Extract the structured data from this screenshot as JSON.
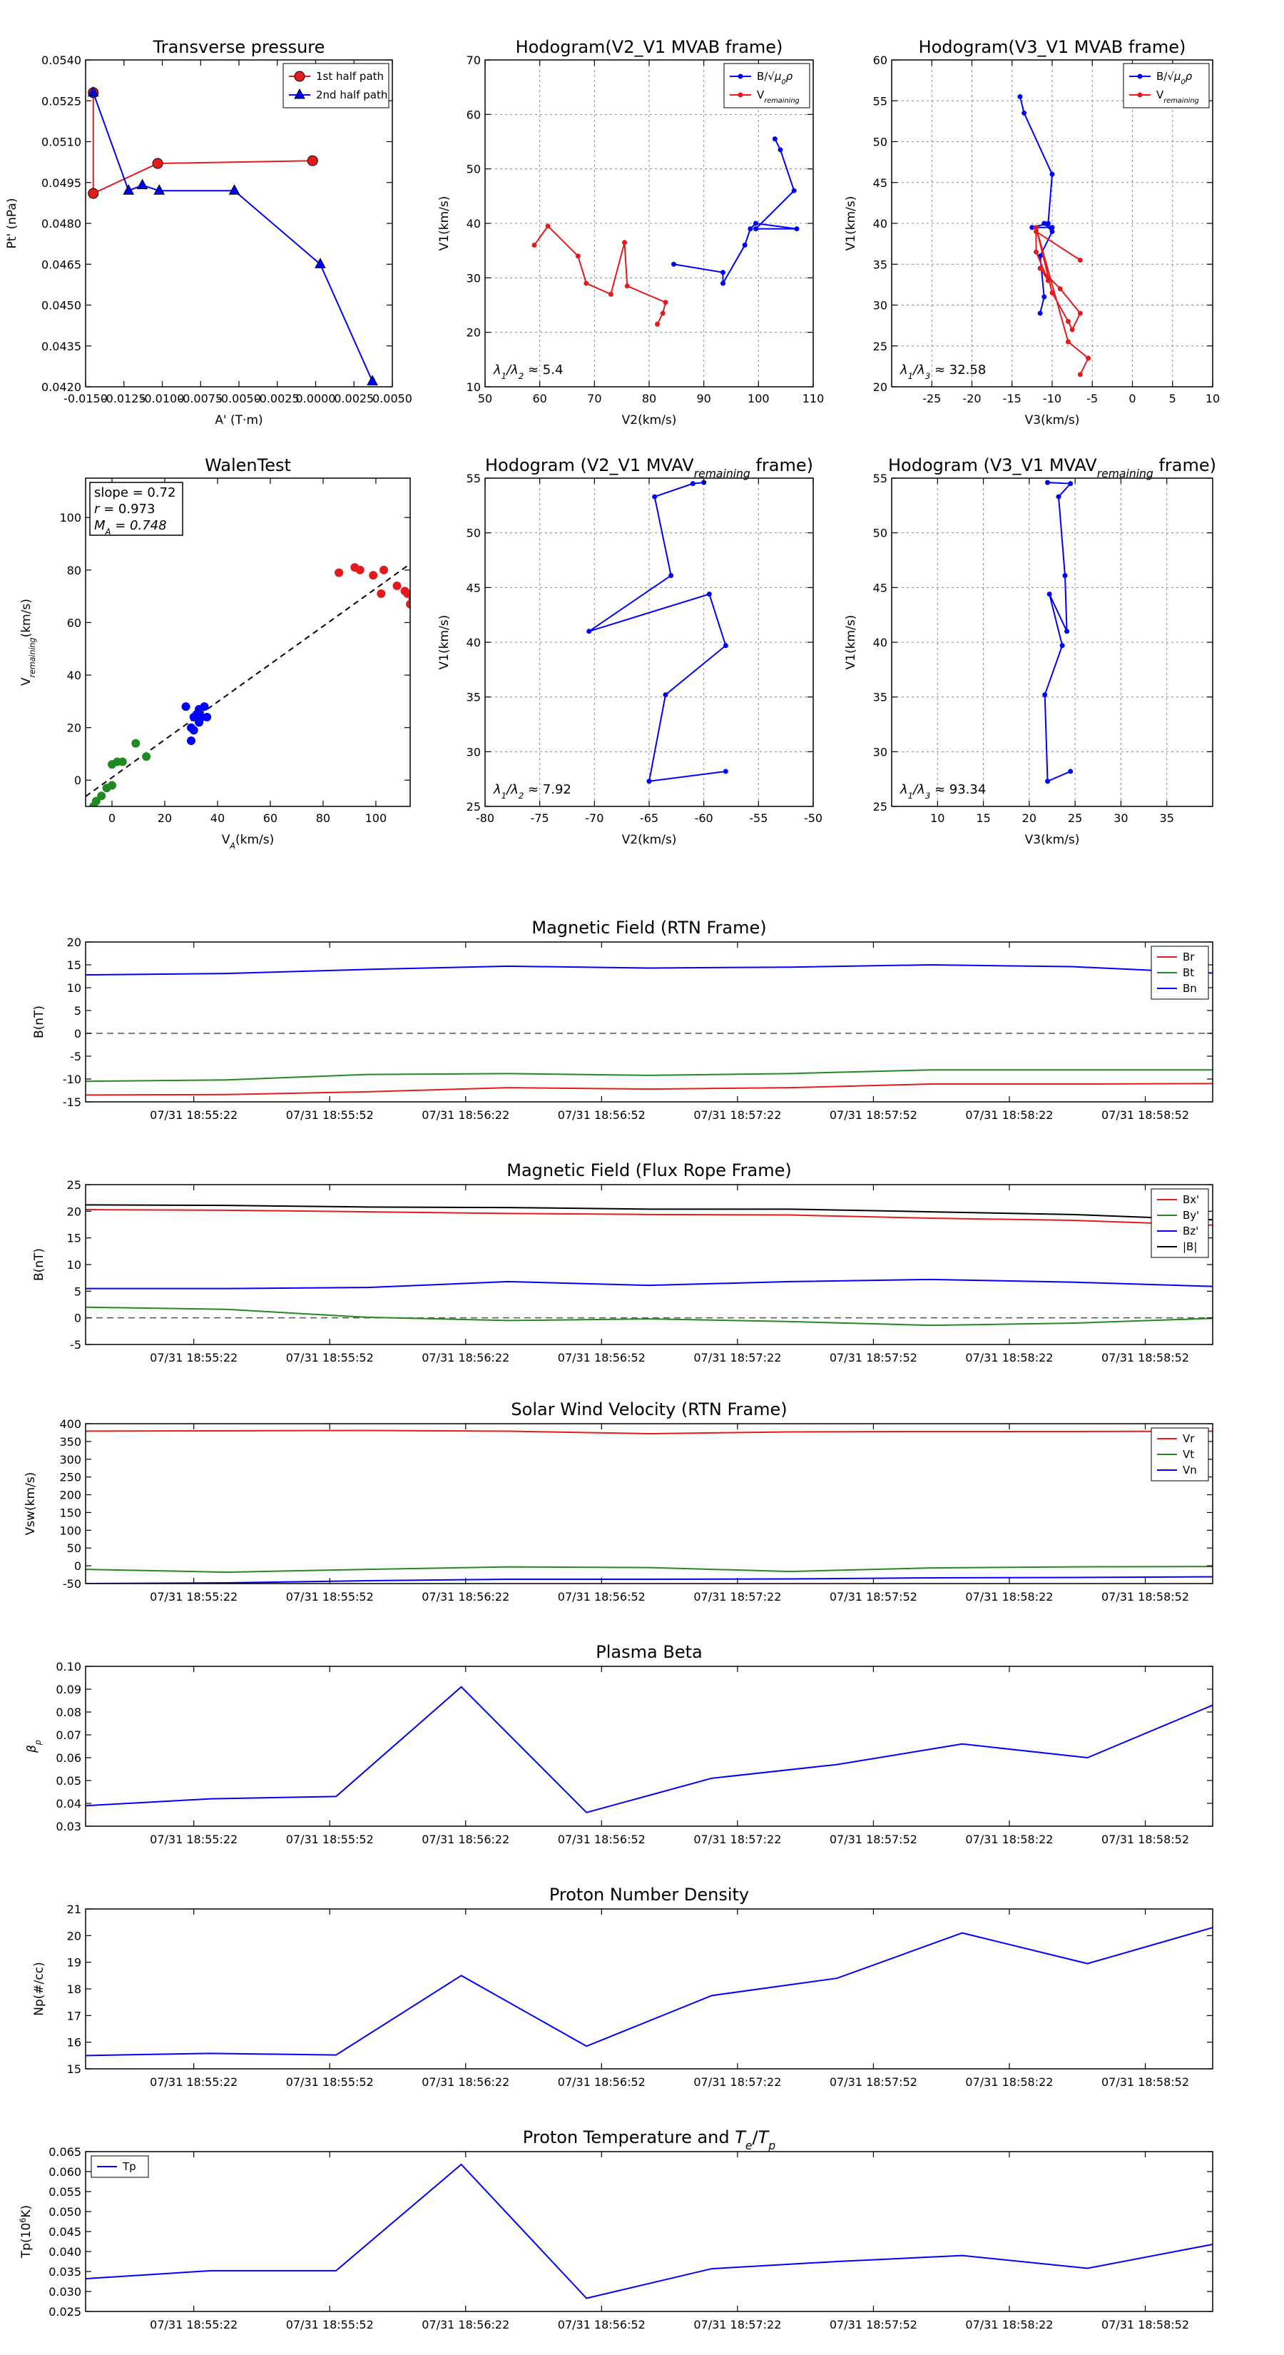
{
  "colors": {
    "red": "#e41a1c",
    "green": "#1f8a1f",
    "blue": "#0000ff",
    "black": "#000000",
    "dash": "#555555",
    "grid": "#888888"
  },
  "chart_data": [
    {
      "id": "transverse-pressure",
      "type": "line",
      "title": "Transverse pressure",
      "xlabel": "A' (T·m)",
      "ylabel": "Pt' (nPa)",
      "xlim": [
        -0.015,
        0.005
      ],
      "ylim": [
        0.042,
        0.054
      ],
      "xticks": [
        "-0.0150",
        "-0.0125",
        "-0.0100",
        "-0.0075",
        "-0.0050",
        "-0.0025",
        "0.0000",
        "0.0025",
        "0.0050"
      ],
      "xtick_values": [
        -0.015,
        -0.0125,
        -0.01,
        -0.0075,
        -0.005,
        -0.0025,
        0,
        0.0025,
        0.005
      ],
      "yticks": [
        "0.0420",
        "0.0435",
        "0.0450",
        "0.0465",
        "0.0480",
        "0.0495",
        "0.0510",
        "0.0525",
        "0.0540"
      ],
      "ytick_values": [
        0.042,
        0.0435,
        0.045,
        0.0465,
        0.048,
        0.0495,
        0.051,
        0.0525,
        0.054
      ],
      "grid": false,
      "legend": "top-right",
      "series": [
        {
          "name": "1st half path",
          "color": "red",
          "marker": "circle",
          "x": [
            -0.0145,
            -0.0145,
            -0.0103,
            -0.0002
          ],
          "y": [
            0.0528,
            0.0491,
            0.0502,
            0.0503
          ]
        },
        {
          "name": "2nd half path",
          "color": "blue",
          "marker": "triangle",
          "x": [
            -0.0145,
            -0.0122,
            -0.0113,
            -0.0102,
            -0.0053,
            0.0003,
            0.0037
          ],
          "y": [
            0.0528,
            0.0492,
            0.0494,
            0.0492,
            0.0492,
            0.0465,
            0.0422
          ]
        }
      ]
    },
    {
      "id": "hodogram-v2-v1-mvab",
      "type": "line",
      "title": "Hodogram(V2_V1 MVAB frame)",
      "xlabel": "V2(km/s)",
      "ylabel": "V1(km/s)",
      "xlim": [
        50,
        110
      ],
      "ylim": [
        10,
        70
      ],
      "xticks": [
        "50",
        "60",
        "70",
        "80",
        "90",
        "100",
        "110"
      ],
      "xtick_values": [
        50,
        60,
        70,
        80,
        90,
        100,
        110
      ],
      "yticks": [
        "10",
        "20",
        "30",
        "40",
        "50",
        "60",
        "70"
      ],
      "ytick_values": [
        10,
        20,
        30,
        40,
        50,
        60,
        70
      ],
      "grid": true,
      "legend": "top-right",
      "annotation": "λ1/λ2 ≈ 5.4",
      "series": [
        {
          "name": "B/√(μ0ρ)",
          "color": "blue",
          "marker": "dot",
          "x": [
            84.5,
            93.5,
            93.5,
            97.5,
            98.5,
            99.5,
            107.0,
            99.5,
            106.5,
            104.0,
            103.0
          ],
          "y": [
            32.5,
            31.0,
            29.0,
            36.0,
            39.0,
            40.0,
            39.0,
            39.0,
            46.0,
            53.5,
            55.5
          ]
        },
        {
          "name": "V_remaining",
          "color": "red",
          "marker": "dot",
          "x": [
            59.0,
            61.5,
            67.0,
            68.5,
            73.0,
            75.5,
            76.0,
            83.0,
            82.5,
            81.5
          ],
          "y": [
            36.0,
            39.5,
            34.0,
            29.0,
            27.0,
            36.5,
            28.5,
            25.5,
            23.5,
            21.5
          ]
        }
      ]
    },
    {
      "id": "hodogram-v3-v1-mvab",
      "type": "line",
      "title": "Hodogram(V3_V1 MVAB frame)",
      "xlabel": "V3(km/s)",
      "ylabel": "V1(km/s)",
      "xlim": [
        -30,
        10
      ],
      "ylim": [
        20,
        60
      ],
      "xticks": [
        "-25",
        "-20",
        "-15",
        "-10",
        "-5",
        "0",
        "5",
        "10"
      ],
      "xtick_values": [
        -25,
        -20,
        -15,
        -10,
        -5,
        0,
        5,
        10
      ],
      "yticks": [
        "20",
        "25",
        "30",
        "35",
        "40",
        "45",
        "50",
        "55",
        "60"
      ],
      "ytick_values": [
        20,
        25,
        30,
        35,
        40,
        45,
        50,
        55,
        60
      ],
      "grid": true,
      "legend": "top-right",
      "annotation": "λ1/λ3 ≈ 32.58",
      "series": [
        {
          "name": "B/√(μ0ρ)",
          "color": "blue",
          "marker": "dot",
          "x": [
            -11.5,
            -11.0,
            -11.5,
            -10.0,
            -11.0,
            -10.0,
            -12.5,
            -10.5,
            -10.0,
            -13.5,
            -14.0
          ],
          "y": [
            29.0,
            31.0,
            36.0,
            39.0,
            40.0,
            39.5,
            39.5,
            40.0,
            46.0,
            53.5,
            55.5
          ]
        },
        {
          "name": "V_remaining",
          "color": "red",
          "marker": "dot",
          "x": [
            -6.5,
            -12.0,
            -12.0,
            -10.5,
            -11.5,
            -9.0,
            -6.5,
            -7.5,
            -8.0,
            -10.0,
            -12.0,
            -8.0,
            -5.5,
            -6.5
          ],
          "y": [
            35.5,
            39.0,
            36.5,
            33.0,
            34.5,
            32.0,
            29.0,
            27.0,
            28.0,
            31.5,
            39.5,
            25.5,
            23.5,
            21.5
          ]
        }
      ]
    },
    {
      "id": "walen-test",
      "type": "scatter",
      "title": "WalenTest",
      "xlabel": "V_A(km/s)",
      "ylabel": "V_remaining(km/s)",
      "xlim": [
        -10,
        113
      ],
      "ylim": [
        -10,
        115
      ],
      "xticks": [
        "0",
        "20",
        "40",
        "60",
        "80",
        "100"
      ],
      "xtick_values": [
        0,
        20,
        40,
        60,
        80,
        100
      ],
      "yticks": [
        "0",
        "20",
        "40",
        "60",
        "80",
        "100"
      ],
      "ytick_values": [
        0,
        20,
        40,
        60,
        80,
        100
      ],
      "grid": false,
      "stats": {
        "slope": "slope = 0.72",
        "r": "r = 0.973",
        "ma": "M_A = 0.748"
      },
      "fit": {
        "slope": 0.72,
        "intercept": 1.0
      },
      "series": [
        {
          "name": "green",
          "color": "green",
          "x": [
            -7,
            -6,
            -4,
            -2,
            0,
            0,
            2,
            4,
            9,
            13
          ],
          "y": [
            -10,
            -8,
            -6,
            -3,
            -2,
            6,
            7,
            7,
            14,
            9
          ]
        },
        {
          "name": "blue",
          "color": "blue",
          "x": [
            28,
            30,
            31,
            32,
            33,
            33,
            34,
            35,
            36,
            31,
            30
          ],
          "y": [
            28,
            20,
            24,
            25,
            22,
            27,
            24,
            28,
            24,
            19,
            15
          ]
        },
        {
          "name": "red",
          "color": "red",
          "x": [
            86,
            92,
            94,
            99,
            102,
            103,
            108,
            111,
            112,
            114,
            113
          ],
          "y": [
            79,
            81,
            80,
            78,
            71,
            80,
            74,
            72,
            71,
            69,
            67
          ]
        }
      ]
    },
    {
      "id": "hodogram-v2-v1-mvav",
      "type": "line",
      "title": "Hodogram (V2_V1 MVAV_remaining frame)",
      "xlabel": "V2(km/s)",
      "ylabel": "V1(km/s)",
      "xlim": [
        -80,
        -50
      ],
      "ylim": [
        25,
        55
      ],
      "xticks": [
        "-80",
        "-75",
        "-70",
        "-65",
        "-60",
        "-55",
        "-50"
      ],
      "xtick_values": [
        -80,
        -75,
        -70,
        -65,
        -60,
        -55,
        -50
      ],
      "yticks": [
        "25",
        "30",
        "35",
        "40",
        "45",
        "50",
        "55"
      ],
      "ytick_values": [
        25,
        30,
        35,
        40,
        45,
        50,
        55
      ],
      "grid": true,
      "annotation": "λ1/λ2 ≈ 7.92",
      "series": [
        {
          "name": "track",
          "color": "blue",
          "marker": "dot",
          "x": [
            -58,
            -65,
            -63.5,
            -58,
            -59.5,
            -70.5,
            -63,
            -64.5,
            -61,
            -60
          ],
          "y": [
            28.2,
            27.3,
            35.2,
            39.7,
            44.4,
            41.0,
            46.1,
            53.3,
            54.5,
            54.6
          ]
        }
      ]
    },
    {
      "id": "hodogram-v3-v1-mvav",
      "type": "line",
      "title": "Hodogram (V3_V1 MVAV_remaining frame)",
      "xlabel": "V3(km/s)",
      "ylabel": "V1(km/s)",
      "xlim": [
        5,
        40
      ],
      "ylim": [
        25,
        55
      ],
      "xticks": [
        "10",
        "15",
        "20",
        "25",
        "30",
        "35"
      ],
      "xtick_values": [
        10,
        15,
        20,
        25,
        30,
        35
      ],
      "yticks": [
        "25",
        "30",
        "35",
        "40",
        "45",
        "50",
        "55"
      ],
      "ytick_values": [
        25,
        30,
        35,
        40,
        45,
        50,
        55
      ],
      "grid": true,
      "annotation": "λ1/λ3 ≈ 93.34",
      "series": [
        {
          "name": "track",
          "color": "blue",
          "marker": "dot",
          "x": [
            24.5,
            22,
            21.7,
            23.6,
            22.2,
            24.1,
            23.9,
            23.2,
            24.5,
            22
          ],
          "y": [
            28.2,
            27.3,
            35.2,
            39.7,
            44.4,
            41.0,
            46.1,
            53.3,
            54.5,
            54.6
          ]
        }
      ]
    },
    {
      "id": "magnetic-field-rtn",
      "type": "line",
      "title": "Magnetic Field (RTN Frame)",
      "xlabel": "",
      "ylabel": "B(nT)",
      "ylim": [
        -15,
        20
      ],
      "yticks": [
        "-15",
        "-10",
        "-5",
        "0",
        "5",
        "10",
        "15",
        "20"
      ],
      "ytick_values": [
        -15,
        -10,
        -5,
        0,
        5,
        10,
        15,
        20
      ],
      "zero_line": true,
      "legend": "top-right",
      "series": [
        {
          "name": "Br",
          "color": "red",
          "values": [
            -13.5,
            -13.4,
            -12.8,
            -11.9,
            -12.2,
            -11.9,
            -11.1,
            -11.1,
            -11.0
          ]
        },
        {
          "name": "Bt",
          "color": "green",
          "values": [
            -10.5,
            -10.2,
            -9.0,
            -8.8,
            -9.2,
            -8.8,
            -8.0,
            -8.0,
            -8.0
          ]
        },
        {
          "name": "Bn",
          "color": "blue",
          "values": [
            12.8,
            13.1,
            14.0,
            14.7,
            14.3,
            14.5,
            15.0,
            14.6,
            13.2
          ]
        }
      ]
    },
    {
      "id": "magnetic-field-flux-rope",
      "type": "line",
      "title": "Magnetic Field (Flux Rope Frame)",
      "xlabel": "",
      "ylabel": "B(nT)",
      "ylim": [
        -5,
        25
      ],
      "yticks": [
        "-5",
        "0",
        "5",
        "10",
        "15",
        "20",
        "25"
      ],
      "ytick_values": [
        -5,
        0,
        5,
        10,
        15,
        20,
        25
      ],
      "zero_line": true,
      "legend": "top-right",
      "series": [
        {
          "name": "Bx'",
          "color": "red",
          "values": [
            20.3,
            20.2,
            19.9,
            19.6,
            19.4,
            19.3,
            18.7,
            18.3,
            17.4
          ]
        },
        {
          "name": "By'",
          "color": "green",
          "values": [
            2.0,
            1.6,
            0.1,
            -0.5,
            -0.2,
            -0.7,
            -1.4,
            -1.0,
            -0.1
          ]
        },
        {
          "name": "Bz'",
          "color": "blue",
          "values": [
            5.5,
            5.5,
            5.7,
            6.8,
            6.1,
            6.8,
            7.2,
            6.7,
            5.9
          ]
        },
        {
          "name": "|B|",
          "color": "black",
          "values": [
            21.2,
            21.1,
            20.8,
            20.7,
            20.4,
            20.4,
            19.9,
            19.4,
            18.4
          ]
        }
      ]
    },
    {
      "id": "solar-wind-velocity",
      "type": "line",
      "title": "Solar Wind Velocity (RTN Frame)",
      "xlabel": "",
      "ylabel": "Vsw(km/s)",
      "ylim": [
        -50,
        400
      ],
      "yticks": [
        "-50",
        "0",
        "50",
        "100",
        "150",
        "200",
        "250",
        "300",
        "350",
        "400"
      ],
      "ytick_values": [
        -50,
        0,
        50,
        100,
        150,
        200,
        250,
        300,
        350,
        400
      ],
      "legend": "top-right",
      "series": [
        {
          "name": "Vr",
          "color": "red",
          "values": [
            379,
            380,
            381,
            379,
            372,
            377,
            378,
            378,
            379
          ]
        },
        {
          "name": "Vt",
          "color": "green",
          "values": [
            -10,
            -18,
            -10,
            -3,
            -5,
            -16,
            -6,
            -3,
            -2
          ]
        },
        {
          "name": "Vn",
          "color": "blue",
          "values": [
            -50,
            -48,
            -42,
            -38,
            -38,
            -37,
            -34,
            -33,
            -31
          ]
        }
      ]
    },
    {
      "id": "plasma-beta",
      "type": "line",
      "title": "Plasma Beta",
      "xlabel": "",
      "ylabel": "β_p",
      "ylim": [
        0.03,
        0.1
      ],
      "yticks": [
        "0.03",
        "0.04",
        "0.05",
        "0.06",
        "0.07",
        "0.08",
        "0.09",
        "0.10"
      ],
      "ytick_values": [
        0.03,
        0.04,
        0.05,
        0.06,
        0.07,
        0.08,
        0.09,
        0.1
      ],
      "series": [
        {
          "name": "beta",
          "color": "blue",
          "values": [
            0.039,
            0.042,
            0.043,
            0.091,
            0.036,
            0.051,
            0.057,
            0.066,
            0.06,
            0.083
          ]
        }
      ]
    },
    {
      "id": "proton-number-density",
      "type": "line",
      "title": "Proton Number Density",
      "xlabel": "",
      "ylabel": "Np(#/cc)",
      "ylim": [
        15,
        21
      ],
      "yticks": [
        "15",
        "16",
        "17",
        "18",
        "19",
        "20",
        "21"
      ],
      "ytick_values": [
        15,
        16,
        17,
        18,
        19,
        20,
        21
      ],
      "series": [
        {
          "name": "Np",
          "color": "blue",
          "values": [
            15.5,
            15.58,
            15.52,
            18.5,
            15.85,
            17.75,
            18.4,
            20.1,
            18.95,
            20.3
          ]
        }
      ]
    },
    {
      "id": "proton-temperature",
      "type": "line",
      "title": "Proton Temperature and Te/Tp",
      "xlabel": "",
      "ylabel": "Tp(10^6 K)",
      "ylim": [
        0.025,
        0.065
      ],
      "yticks": [
        "0.025",
        "0.030",
        "0.035",
        "0.040",
        "0.045",
        "0.050",
        "0.055",
        "0.060",
        "0.065"
      ],
      "ytick_values": [
        0.025,
        0.03,
        0.035,
        0.04,
        0.045,
        0.05,
        0.055,
        0.06,
        0.065
      ],
      "legend": "top-left",
      "series": [
        {
          "name": "Tp",
          "color": "blue",
          "values": [
            0.0332,
            0.0352,
            0.0352,
            0.0618,
            0.0283,
            0.0357,
            0.0375,
            0.039,
            0.0358,
            0.0418
          ]
        }
      ]
    }
  ],
  "time_axis": {
    "tick_labels": [
      "07/31 18:55:22",
      "07/31 18:55:52",
      "07/31 18:56:22",
      "07/31 18:56:52",
      "07/31 18:57:22",
      "07/31 18:57:52",
      "07/31 18:58:22",
      "07/31 18:58:52"
    ]
  }
}
